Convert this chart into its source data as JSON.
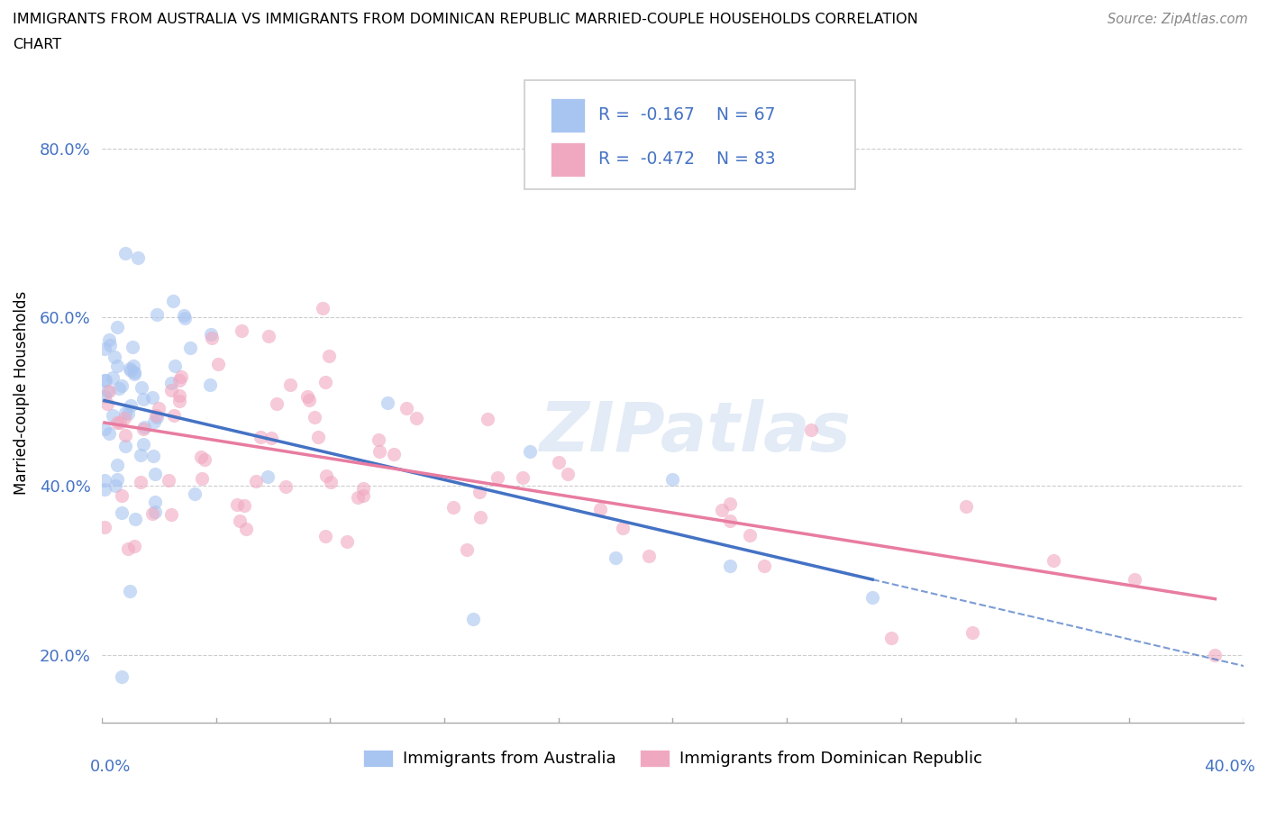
{
  "title_line1": "IMMIGRANTS FROM AUSTRALIA VS IMMIGRANTS FROM DOMINICAN REPUBLIC MARRIED-COUPLE HOUSEHOLDS CORRELATION",
  "title_line2": "CHART",
  "source": "Source: ZipAtlas.com",
  "ylabel": "Married-couple Households",
  "y_ticks": [
    0.2,
    0.4,
    0.6,
    0.8
  ],
  "y_tick_labels": [
    "20.0%",
    "40.0%",
    "60.0%",
    "80.0%"
  ],
  "x_lim": [
    0.0,
    0.4
  ],
  "y_lim": [
    0.12,
    0.9
  ],
  "color_australia": "#a8c4f0",
  "color_dr": "#f0a8c0",
  "color_text_blue": "#4472c4",
  "color_trend_australia": "#4472c4",
  "color_trend_dr": "#e87ca0",
  "watermark": "ZIPatlas",
  "dot_size": 120,
  "dot_alpha": 0.6,
  "aus_R": -0.167,
  "aus_N": 67,
  "dr_R": -0.472,
  "dr_N": 83
}
